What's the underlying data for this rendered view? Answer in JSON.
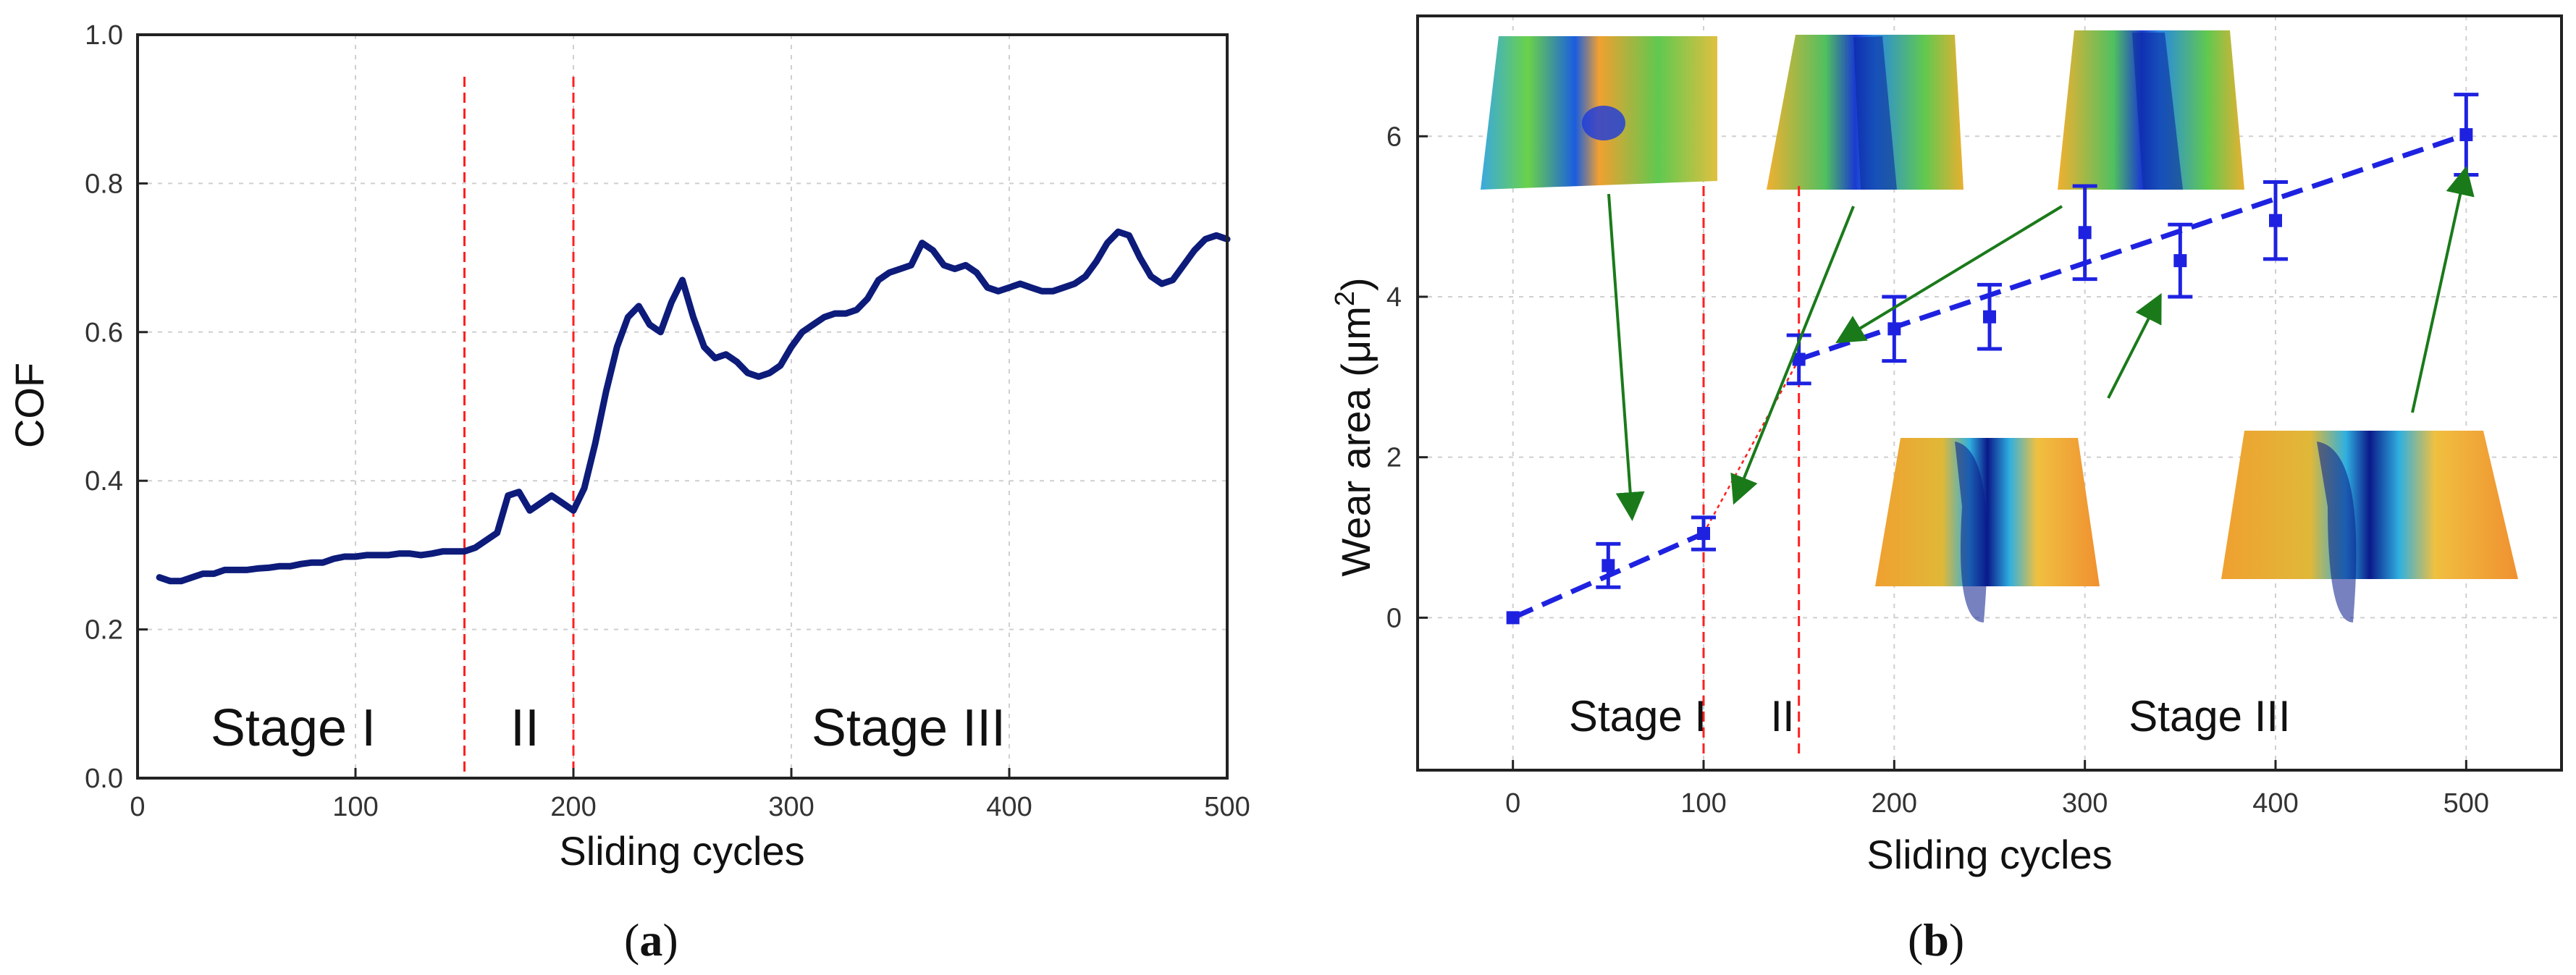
{
  "colors": {
    "cof_line": "#0d1b7a",
    "wear_blue": "#1e22e0",
    "stage_line": "#ff2020",
    "arrow": "#1a7a1a",
    "frame": "#222222",
    "grid": "#cfcfcf"
  },
  "chart_data": [
    {
      "type": "line",
      "panel_label": "(a)",
      "xlabel": "Sliding cycles",
      "ylabel": "COF",
      "xlim": [
        0,
        500
      ],
      "ylim": [
        0.0,
        1.0
      ],
      "xticks": [
        "0",
        "100",
        "200",
        "300",
        "400",
        "500"
      ],
      "yticks": [
        "0.0",
        "0.2",
        "0.4",
        "0.6",
        "0.8",
        "1.0"
      ],
      "grid": true,
      "stage_boundaries": [
        150,
        200
      ],
      "stage_labels": [
        "Stage I",
        "II",
        "Stage III"
      ],
      "series": [
        {
          "name": "COF",
          "x": [
            10,
            15,
            20,
            25,
            30,
            35,
            40,
            45,
            50,
            55,
            60,
            65,
            70,
            75,
            80,
            85,
            90,
            95,
            100,
            105,
            110,
            115,
            120,
            125,
            130,
            135,
            140,
            145,
            150,
            155,
            160,
            165,
            170,
            175,
            180,
            185,
            190,
            195,
            200,
            205,
            210,
            215,
            220,
            225,
            230,
            235,
            240,
            245,
            250,
            255,
            260,
            265,
            270,
            275,
            280,
            285,
            290,
            295,
            300,
            305,
            310,
            315,
            320,
            325,
            330,
            335,
            340,
            345,
            350,
            355,
            360,
            365,
            370,
            375,
            380,
            385,
            390,
            395,
            400,
            405,
            410,
            415,
            420,
            425,
            430,
            435,
            440,
            445,
            450,
            455,
            460,
            465,
            470,
            475,
            480,
            485,
            490,
            495,
            500
          ],
          "y": [
            0.27,
            0.265,
            0.265,
            0.27,
            0.275,
            0.275,
            0.28,
            0.28,
            0.28,
            0.282,
            0.283,
            0.285,
            0.285,
            0.288,
            0.29,
            0.29,
            0.295,
            0.298,
            0.298,
            0.3,
            0.3,
            0.3,
            0.302,
            0.302,
            0.3,
            0.302,
            0.305,
            0.305,
            0.305,
            0.31,
            0.32,
            0.33,
            0.38,
            0.385,
            0.36,
            0.37,
            0.38,
            0.37,
            0.36,
            0.39,
            0.45,
            0.52,
            0.58,
            0.62,
            0.635,
            0.61,
            0.6,
            0.64,
            0.67,
            0.62,
            0.58,
            0.565,
            0.57,
            0.56,
            0.545,
            0.54,
            0.545,
            0.555,
            0.58,
            0.6,
            0.61,
            0.62,
            0.625,
            0.625,
            0.63,
            0.645,
            0.67,
            0.68,
            0.685,
            0.69,
            0.72,
            0.71,
            0.69,
            0.685,
            0.69,
            0.68,
            0.66,
            0.655,
            0.66,
            0.665,
            0.66,
            0.655,
            0.655,
            0.66,
            0.665,
            0.675,
            0.695,
            0.72,
            0.735,
            0.73,
            0.7,
            0.675,
            0.665,
            0.67,
            0.69,
            0.71,
            0.725,
            0.73,
            0.725
          ]
        }
      ]
    },
    {
      "type": "scatter",
      "panel_label": "(b)",
      "xlabel": "Sliding cycles",
      "ylabel": "Wear area (μm",
      "ylabel_sup": "2",
      "ylabel_end": ")",
      "xlim": [
        -50,
        550
      ],
      "ylim": [
        -1.9,
        7.5
      ],
      "xticks": [
        "0",
        "100",
        "200",
        "300",
        "400",
        "500"
      ],
      "yticks": [
        "0",
        "2",
        "4",
        "6"
      ],
      "grid": true,
      "stage_boundaries": [
        100,
        150
      ],
      "stage_labels": [
        "Stage I",
        "II",
        "Stage III"
      ],
      "series": [
        {
          "name": "Wear area",
          "x": [
            0,
            50,
            100,
            150,
            200,
            250,
            300,
            350,
            400,
            500
          ],
          "y": [
            0.0,
            0.65,
            1.05,
            3.22,
            3.6,
            3.75,
            4.8,
            4.45,
            4.95,
            6.02
          ],
          "err": [
            0.0,
            0.27,
            0.2,
            0.3,
            0.4,
            0.4,
            0.58,
            0.45,
            0.48,
            0.5
          ]
        }
      ],
      "fit_lines": [
        {
          "x": [
            0,
            100
          ],
          "y": [
            0.0,
            1.05
          ],
          "style": "dashed"
        },
        {
          "x": [
            150,
            500
          ],
          "y": [
            3.22,
            6.02
          ],
          "style": "dashed"
        },
        {
          "x": [
            100,
            150
          ],
          "y": [
            1.05,
            3.22
          ],
          "style": "dotted-red"
        }
      ]
    }
  ]
}
